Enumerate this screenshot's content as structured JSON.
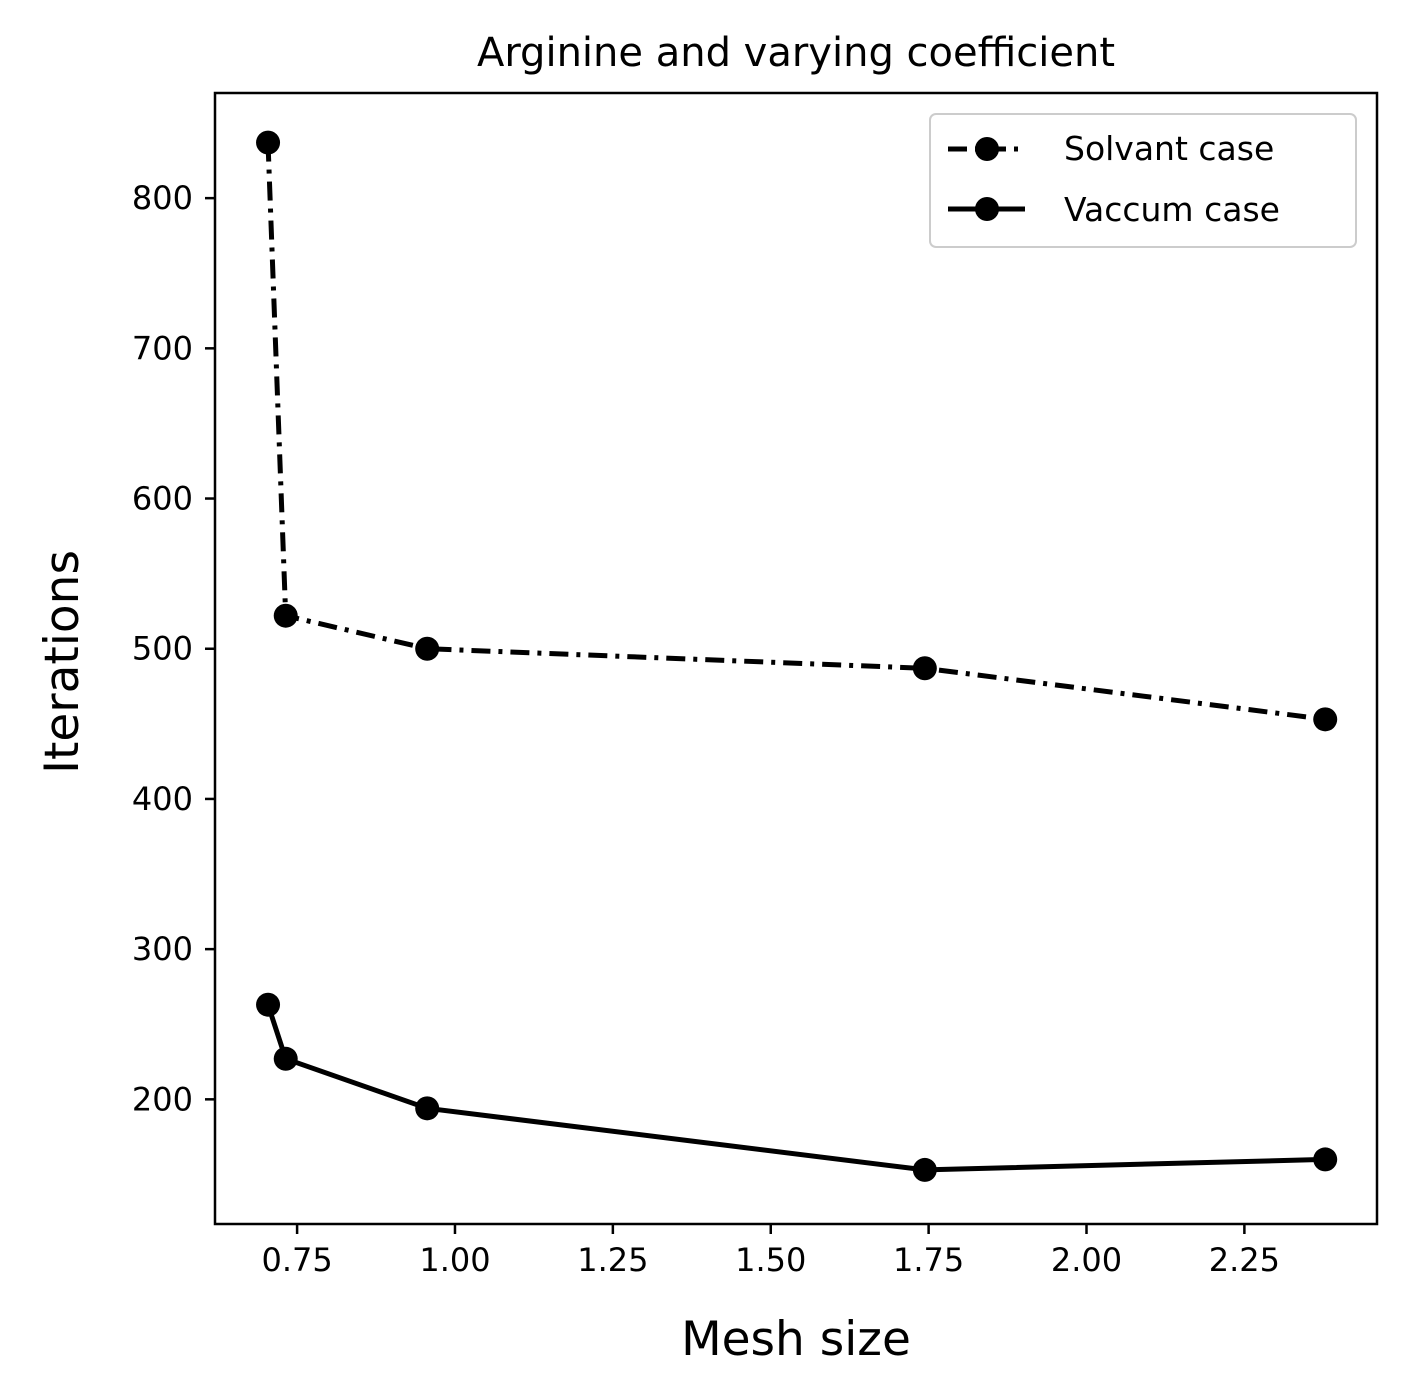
{
  "chart_data": {
    "type": "line",
    "title": "Arginine and varying coefficient",
    "xlabel": "Mesh size",
    "ylabel": "Iterations",
    "xlim": [
      0.62,
      2.46
    ],
    "ylim": [
      117,
      870
    ],
    "xticks": [
      0.75,
      1.0,
      1.25,
      1.5,
      1.75,
      2.0,
      2.25
    ],
    "xtick_labels": [
      "0.75",
      "1.00",
      "1.25",
      "1.50",
      "1.75",
      "2.00",
      "2.25"
    ],
    "yticks": [
      200,
      300,
      400,
      500,
      600,
      700,
      800
    ],
    "ytick_labels": [
      "200",
      "300",
      "400",
      "500",
      "600",
      "700",
      "800"
    ],
    "grid": false,
    "legend_position": "top-right",
    "series": [
      {
        "name": "Solvant case",
        "line_style": "dash-dot",
        "marker": "circle",
        "color": "#000000",
        "x": [
          0.704,
          0.732,
          0.956,
          1.744,
          2.378
        ],
        "y": [
          837,
          522,
          500,
          487,
          453
        ]
      },
      {
        "name": "Vaccum case",
        "line_style": "solid",
        "marker": "circle",
        "color": "#000000",
        "x": [
          0.704,
          0.732,
          0.956,
          1.744,
          2.378
        ],
        "y": [
          263,
          227,
          194,
          153,
          160
        ]
      }
    ]
  }
}
